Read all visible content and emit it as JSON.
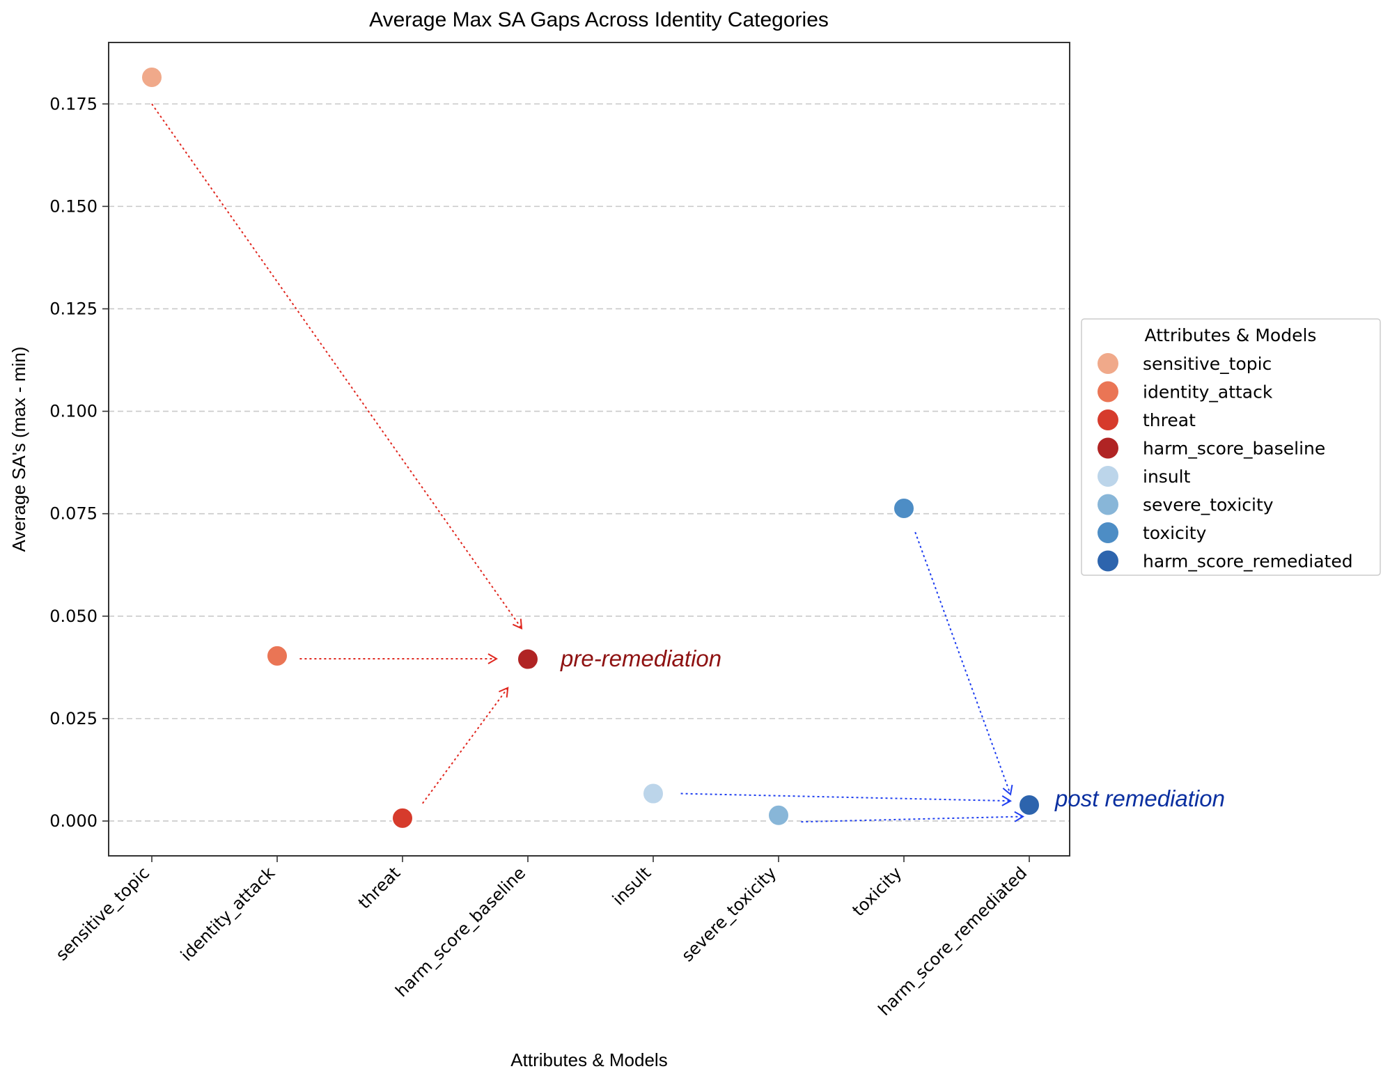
{
  "chart_data": {
    "type": "scatter",
    "title": "Average Max SA Gaps Across Identity Categories",
    "xlabel": "Attributes & Models",
    "ylabel": "Average SA's (max - min)",
    "ylim": [
      -0.0085,
      0.19
    ],
    "yticks": [
      "0.000",
      "0.025",
      "0.050",
      "0.075",
      "0.100",
      "0.125",
      "0.150",
      "0.175"
    ],
    "ytick_values": [
      0,
      0.025,
      0.05,
      0.075,
      0.1,
      0.125,
      0.15,
      0.175
    ],
    "grid": "horizontal dashed",
    "categories": [
      "sensitive_topic",
      "identity_attack",
      "threat",
      "harm_score_baseline",
      "insult",
      "severe_toxicity",
      "toxicity",
      "harm_score_remediated"
    ],
    "values": [
      0.1815,
      0.0403,
      0.0007,
      0.0395,
      0.0067,
      0.0014,
      0.0763,
      0.0039
    ],
    "colors": [
      "#f0a98a",
      "#ea7555",
      "#d63b2c",
      "#b02424",
      "#bcd5ea",
      "#88b6d8",
      "#4d8dc5",
      "#2d64ad"
    ],
    "legend": {
      "title": "Attributes & Models",
      "placement": "center-right outside",
      "entries": [
        "sensitive_topic",
        "identity_attack",
        "threat",
        "harm_score_baseline",
        "insult",
        "severe_toxicity",
        "toxicity",
        "harm_score_remediated"
      ]
    },
    "annotations": {
      "pre": "pre-remediation",
      "post": "post remediation",
      "pre_color": "#8e1212",
      "post_color": "#0a2fa0",
      "red_arrow_color": "#e0271f",
      "blue_arrow_color": "#1f3ff0",
      "arrows": [
        {
          "color": "red",
          "from": [
            0,
            0.175
          ],
          "to": [
            2.95,
            0.047
          ]
        },
        {
          "color": "red",
          "from": [
            1.18,
            0.0396
          ],
          "to": [
            2.75,
            0.0396
          ]
        },
        {
          "color": "red",
          "from": [
            2.16,
            0.0043
          ],
          "to": [
            2.84,
            0.0325
          ]
        },
        {
          "color": "blue",
          "from": [
            6.09,
            0.0705
          ],
          "to": [
            6.85,
            0.0065
          ]
        },
        {
          "color": "blue",
          "from": [
            4.22,
            0.0067
          ],
          "to": [
            6.85,
            0.0049
          ]
        },
        {
          "color": "blue",
          "from": [
            5.18,
            -0.0002
          ],
          "to": [
            6.95,
            0.0011
          ]
        }
      ]
    }
  }
}
